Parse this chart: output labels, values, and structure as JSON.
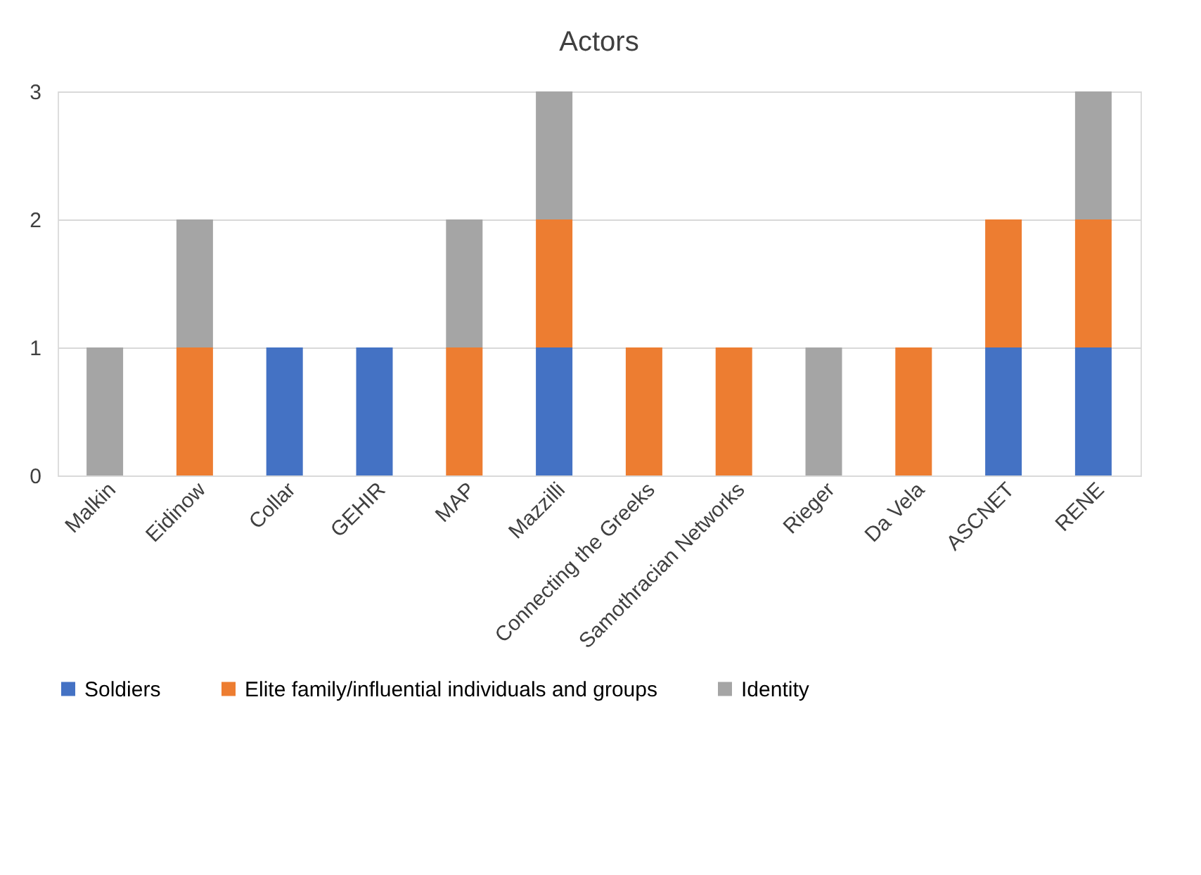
{
  "chart_data": {
    "type": "bar",
    "title": "Actors",
    "stacked": true,
    "categories": [
      "Malkin",
      "Eidinow",
      "Collar",
      "GEHIR",
      "MAP",
      "Mazzilli",
      "Connecting the Greeks",
      "Samothracian Networks",
      "Rieger",
      "Da Vela",
      "ASCNET",
      "RENE"
    ],
    "series": [
      {
        "name": "Soldiers",
        "color": "#4472c4",
        "values": [
          0,
          0,
          1,
          1,
          0,
          1,
          0,
          0,
          0,
          0,
          1,
          1
        ]
      },
      {
        "name": "Elite family/influential individuals and groups",
        "color": "#ed7d31",
        "values": [
          0,
          1,
          0,
          0,
          1,
          1,
          1,
          1,
          0,
          1,
          1,
          1
        ]
      },
      {
        "name": "Identity",
        "color": "#a5a5a5",
        "values": [
          1,
          1,
          0,
          0,
          1,
          1,
          0,
          0,
          1,
          0,
          0,
          1
        ]
      }
    ],
    "ylim": [
      0,
      3
    ],
    "yticks": [
      0,
      1,
      2,
      3
    ],
    "grid": "y",
    "legend": "bottom"
  }
}
